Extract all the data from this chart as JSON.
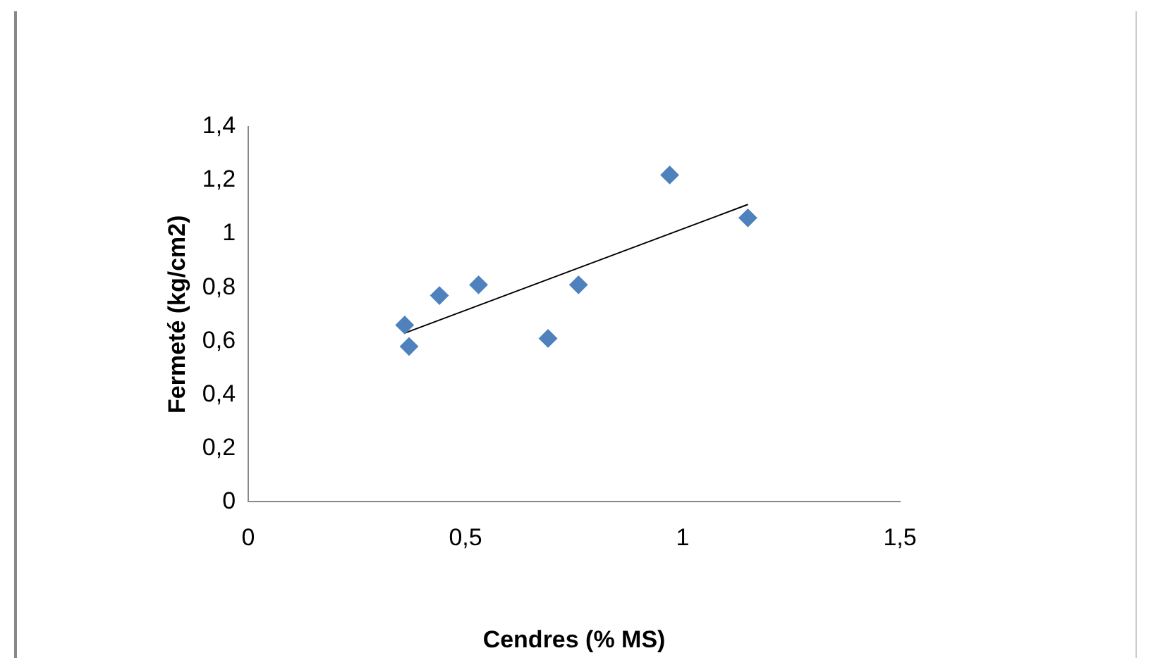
{
  "chart_data": {
    "type": "scatter",
    "xlabel": "Cendres (% MS)",
    "ylabel": "Fermeté (kg/cm2)",
    "xlim": [
      0,
      1.5
    ],
    "xticks": [
      {
        "value": 0,
        "label": "0"
      },
      {
        "value": 0.5,
        "label": "0,5"
      },
      {
        "value": 1,
        "label": "1"
      },
      {
        "value": 1.5,
        "label": "1,5"
      }
    ],
    "ylim": [
      0,
      1.4
    ],
    "yticks": [
      {
        "value": 0,
        "label": "0"
      },
      {
        "value": 0.2,
        "label": "0,2"
      },
      {
        "value": 0.4,
        "label": "0,4"
      },
      {
        "value": 0.6,
        "label": "0,6"
      },
      {
        "value": 0.8,
        "label": "0,8"
      },
      {
        "value": 1,
        "label": "1"
      },
      {
        "value": 1.2,
        "label": "1,2"
      },
      {
        "value": 1.4,
        "label": "1,4"
      }
    ],
    "grid": false,
    "legend": false,
    "series": [
      {
        "type": "scatter",
        "marker": "diamond",
        "color": "#4f81bd",
        "x": [
          0.36,
          0.37,
          0.44,
          0.53,
          0.69,
          0.76,
          0.97,
          1.15
        ],
        "values": [
          0.66,
          0.58,
          0.77,
          0.81,
          0.61,
          0.81,
          1.22,
          1.06
        ]
      },
      {
        "type": "line",
        "color": "#000000",
        "x": [
          0.36,
          1.15
        ],
        "values": [
          0.63,
          1.11
        ]
      }
    ]
  }
}
